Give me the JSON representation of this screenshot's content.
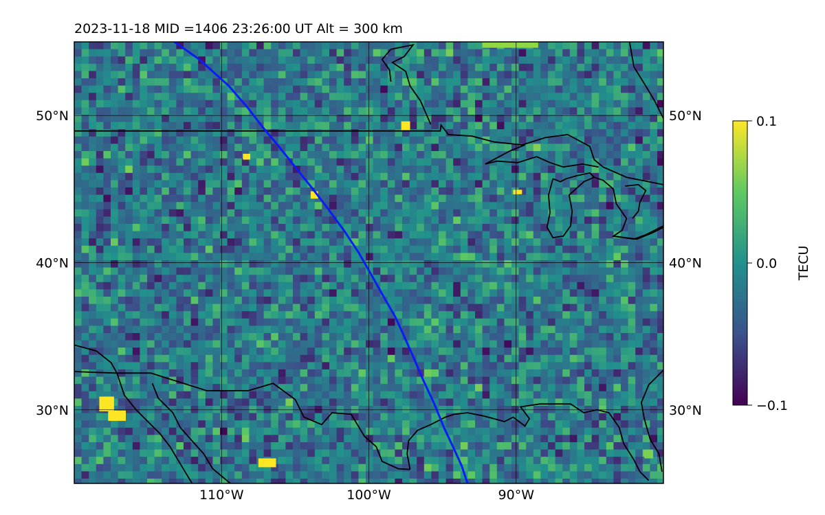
{
  "title": "2023-11-18  MID =1406    23:26:00  UT  Alt = 300 km",
  "map": {
    "lon_range": [
      -120,
      -80
    ],
    "lat_range": [
      25,
      55
    ],
    "lon_ticks": [
      {
        "value": -110,
        "label": "110°W"
      },
      {
        "value": -100,
        "label": "100°W"
      },
      {
        "value": -90,
        "label": "90°W"
      }
    ],
    "lat_ticks": [
      {
        "value": 50,
        "label": "50°N"
      },
      {
        "value": 40,
        "label": "40°N"
      },
      {
        "value": 30,
        "label": "30°N"
      }
    ],
    "gridlines": true,
    "colormap": "viridis",
    "colormap_stops": [
      "#440154",
      "#3b528b",
      "#21918c",
      "#5ec962",
      "#fde725"
    ],
    "field_base_color": "#2a8a8b",
    "track_color": "#0b1cf5",
    "coastline_color": "#000000",
    "track": [
      [
        -113.2,
        55.0
      ],
      [
        -111.5,
        53.8
      ],
      [
        -109.5,
        52.0
      ],
      [
        -108.2,
        50.5
      ],
      [
        -107.2,
        49.2
      ],
      [
        -106.2,
        48.0
      ],
      [
        -105.0,
        46.5
      ],
      [
        -103.8,
        45.0
      ],
      [
        -102.8,
        43.7
      ],
      [
        -101.7,
        42.2
      ],
      [
        -100.7,
        40.7
      ],
      [
        -99.9,
        39.3
      ],
      [
        -99.0,
        37.7
      ],
      [
        -98.2,
        36.3
      ],
      [
        -97.6,
        35.0
      ],
      [
        -96.9,
        33.4
      ],
      [
        -96.3,
        32.0
      ],
      [
        -95.6,
        30.5
      ],
      [
        -94.9,
        28.8
      ],
      [
        -94.2,
        27.3
      ],
      [
        -93.7,
        26.2
      ],
      [
        -93.3,
        25.0
      ]
    ],
    "borders": [
      [
        [
          -120,
          48.95
        ],
        [
          -95.15,
          48.95
        ],
        [
          -95.1,
          49.35
        ],
        [
          -94.6,
          48.7
        ],
        [
          -93.0,
          48.6
        ],
        [
          -91.5,
          48.2
        ],
        [
          -89.6,
          48.0
        ],
        [
          -88.0,
          48.5
        ],
        [
          -86.5,
          48.7
        ],
        [
          -85.0,
          47.9
        ],
        [
          -84.7,
          47.0
        ],
        [
          -84.1,
          46.5
        ],
        [
          -82.5,
          45.8
        ],
        [
          -81.0,
          45.5
        ],
        [
          -80,
          45.3
        ]
      ],
      [
        [
          -120,
          32.6
        ],
        [
          -117.2,
          32.5
        ],
        [
          -114.8,
          32.5
        ],
        [
          -111.0,
          31.3
        ],
        [
          -108.2,
          31.3
        ],
        [
          -106.5,
          31.8
        ],
        [
          -105.0,
          30.7
        ],
        [
          -104.4,
          29.5
        ],
        [
          -103.2,
          29.0
        ],
        [
          -102.5,
          29.8
        ],
        [
          -101.2,
          29.7
        ],
        [
          -100.3,
          28.2
        ],
        [
          -99.5,
          27.5
        ],
        [
          -99.1,
          26.5
        ],
        [
          -98.0,
          26.0
        ],
        [
          -97.2,
          25.95
        ]
      ]
    ],
    "coastlines": [
      [
        [
          -120,
          34.4
        ],
        [
          -118.5,
          34.0
        ],
        [
          -117.5,
          33.2
        ],
        [
          -117.1,
          32.5
        ],
        [
          -116.6,
          31.0
        ],
        [
          -115.8,
          30.0
        ],
        [
          -115.0,
          29.2
        ],
        [
          -114.2,
          28.4
        ],
        [
          -113.5,
          27.5
        ],
        [
          -112.6,
          26.0
        ],
        [
          -112.0,
          25.0
        ]
      ],
      [
        [
          -114.7,
          31.8
        ],
        [
          -114.3,
          30.8
        ],
        [
          -113.3,
          29.8
        ],
        [
          -112.8,
          28.8
        ],
        [
          -112.1,
          28.0
        ],
        [
          -111.2,
          27.0
        ],
        [
          -110.6,
          26.0
        ],
        [
          -109.4,
          25.0
        ]
      ],
      [
        [
          -97.2,
          25.95
        ],
        [
          -97.4,
          27.0
        ],
        [
          -97.3,
          27.9
        ],
        [
          -96.7,
          28.6
        ],
        [
          -95.8,
          29.0
        ],
        [
          -94.8,
          29.5
        ],
        [
          -94.2,
          29.7
        ],
        [
          -93.3,
          29.8
        ],
        [
          -92.3,
          29.6
        ],
        [
          -91.5,
          29.4
        ],
        [
          -90.8,
          29.2
        ],
        [
          -90.2,
          29.5
        ],
        [
          -89.4,
          28.9
        ],
        [
          -89.1,
          29.4
        ],
        [
          -89.7,
          30.2
        ],
        [
          -88.4,
          30.4
        ],
        [
          -87.2,
          30.4
        ],
        [
          -86.3,
          30.4
        ],
        [
          -85.4,
          29.8
        ],
        [
          -84.5,
          30.0
        ],
        [
          -83.7,
          29.8
        ],
        [
          -83.0,
          28.8
        ],
        [
          -82.7,
          27.7
        ],
        [
          -82.0,
          26.6
        ],
        [
          -81.6,
          25.8
        ],
        [
          -81.0,
          25.2
        ]
      ],
      [
        [
          -80.0,
          32.7
        ],
        [
          -81.0,
          31.7
        ],
        [
          -81.5,
          30.5
        ],
        [
          -81.3,
          29.4
        ],
        [
          -80.9,
          28.0
        ],
        [
          -80.3,
          27.0
        ],
        [
          -80.1,
          25.8
        ]
      ],
      [
        [
          -95.8,
          49.4
        ],
        [
          -96.5,
          51.0
        ],
        [
          -97.2,
          52.0
        ],
        [
          -97.5,
          53.0
        ],
        [
          -98.4,
          53.6
        ],
        [
          -97.6,
          54.0
        ],
        [
          -97.0,
          54.8
        ],
        [
          -98.5,
          54.5
        ],
        [
          -99.1,
          53.8
        ],
        [
          -98.6,
          53.1
        ],
        [
          -98.5,
          52.3
        ]
      ],
      [
        [
          -84.4,
          46.5
        ],
        [
          -85.5,
          46.7
        ],
        [
          -86.8,
          46.5
        ],
        [
          -87.7,
          46.8
        ],
        [
          -88.6,
          47.2
        ],
        [
          -89.9,
          46.8
        ],
        [
          -91.3,
          46.9
        ],
        [
          -92.1,
          46.7
        ],
        [
          -90.4,
          47.6
        ],
        [
          -89.4,
          48.0
        ]
      ],
      [
        [
          -87.5,
          45.7
        ],
        [
          -87.8,
          44.6
        ],
        [
          -87.7,
          43.4
        ],
        [
          -87.9,
          42.4
        ],
        [
          -87.5,
          41.7
        ],
        [
          -86.8,
          41.8
        ],
        [
          -86.3,
          42.5
        ],
        [
          -86.2,
          43.5
        ],
        [
          -86.4,
          44.6
        ],
        [
          -85.4,
          45.5
        ],
        [
          -84.7,
          45.8
        ],
        [
          -84.1,
          45.6
        ],
        [
          -83.4,
          45.0
        ],
        [
          -83.2,
          44.0
        ],
        [
          -82.5,
          43.0
        ],
        [
          -82.8,
          42.2
        ],
        [
          -83.4,
          41.8
        ],
        [
          -82.0,
          41.6
        ],
        [
          -81.2,
          41.9
        ],
        [
          -80,
          42.5
        ]
      ],
      [
        [
          -84.7,
          45.8
        ],
        [
          -85.0,
          46.1
        ],
        [
          -85.9,
          45.9
        ],
        [
          -86.6,
          45.7
        ],
        [
          -87.0,
          45.5
        ],
        [
          -87.5,
          45.7
        ]
      ],
      [
        [
          -82.6,
          45.2
        ],
        [
          -81.7,
          45.3
        ],
        [
          -81.2,
          44.9
        ],
        [
          -81.6,
          44.1
        ],
        [
          -81.7,
          43.5
        ],
        [
          -82.1,
          43.0
        ]
      ],
      [
        [
          -83.4,
          41.8
        ],
        [
          -81.8,
          41.6
        ],
        [
          -80.8,
          42.0
        ],
        [
          -80,
          42.4
        ]
      ],
      [
        [
          -80,
          49.8
        ],
        [
          -80.6,
          51.0
        ],
        [
          -81.2,
          52.0
        ],
        [
          -82.0,
          53.3
        ],
        [
          -82.3,
          55.0
        ]
      ]
    ],
    "highlights": [
      {
        "lon": -117.8,
        "lat": 30.4,
        "w": 1.0,
        "h": 1.0,
        "color": "#fde725"
      },
      {
        "lon": -117.1,
        "lat": 29.6,
        "w": 1.2,
        "h": 0.7,
        "color": "#fde725"
      },
      {
        "lon": -106.9,
        "lat": 26.4,
        "w": 1.2,
        "h": 0.6,
        "color": "#fde725"
      },
      {
        "lon": -103.7,
        "lat": 44.6,
        "w": 0.5,
        "h": 0.5,
        "color": "#fde725"
      },
      {
        "lon": -97.5,
        "lat": 49.3,
        "w": 0.6,
        "h": 0.6,
        "color": "#fde725"
      },
      {
        "lon": -108.3,
        "lat": 47.2,
        "w": 0.5,
        "h": 0.4,
        "color": "#fde725"
      },
      {
        "lon": -89.9,
        "lat": 44.8,
        "w": 0.6,
        "h": 0.3,
        "color": "#fde725"
      },
      {
        "lon": -90.4,
        "lat": 55.0,
        "w": 3.8,
        "h": 0.8,
        "color": "#8fd744"
      },
      {
        "lon": -81.0,
        "lat": 27.0,
        "w": 0.6,
        "h": 0.6,
        "color": "#7ad151"
      }
    ]
  },
  "colorbar": {
    "label": "TECU",
    "vmin": -0.1,
    "vmax": 0.1,
    "ticks": [
      {
        "value": 0.1,
        "label": "0.1"
      },
      {
        "value": 0.0,
        "label": "0.0"
      },
      {
        "value": -0.1,
        "label": "−0.1"
      }
    ]
  }
}
